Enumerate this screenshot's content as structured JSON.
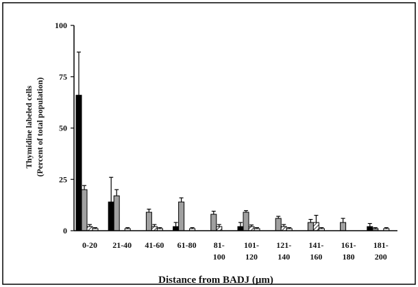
{
  "chart_data": {
    "type": "bar",
    "title": "",
    "xlabel": "Distance from BADJ (μm)",
    "ylabel_lines": [
      "Thymidine labeled cells",
      "(Percent of total population)"
    ],
    "ylim": [
      0,
      100
    ],
    "yticks": [
      0,
      25,
      50,
      75,
      100
    ],
    "grid": false,
    "legend": "none",
    "categories": [
      [
        "0-20"
      ],
      [
        "21-40"
      ],
      [
        "41-60"
      ],
      [
        "61-80"
      ],
      [
        "81-",
        "100"
      ],
      [
        "101-",
        "120"
      ],
      [
        "121-",
        "140"
      ],
      [
        "141-",
        "160"
      ],
      [
        "161-",
        "180"
      ],
      [
        "181-",
        "200"
      ]
    ],
    "series": [
      {
        "fill": "solid-black",
        "color": "#000000",
        "values": [
          66,
          14,
          0,
          2,
          0,
          2,
          0,
          0,
          0,
          2
        ],
        "errors": [
          21,
          12,
          0,
          2,
          0,
          2,
          0,
          0,
          0,
          1.5
        ]
      },
      {
        "fill": "gray",
        "color": "#a0a0a0",
        "values": [
          20,
          17,
          9,
          14,
          8,
          9,
          6,
          4,
          4,
          1
        ],
        "errors": [
          2,
          3,
          1.5,
          2,
          1.5,
          0.8,
          1,
          1.5,
          2,
          0.5
        ]
      },
      {
        "fill": "diagonal-hatch",
        "color": "#000000",
        "values": [
          2,
          0,
          2,
          0,
          2,
          2,
          2,
          4,
          0,
          0
        ],
        "errors": [
          1,
          0,
          1,
          0,
          1,
          0.8,
          1,
          3.5,
          0,
          0
        ]
      },
      {
        "fill": "white",
        "color": "#ffffff",
        "values": [
          1,
          1,
          1,
          1,
          0,
          1,
          1,
          1,
          0,
          1
        ],
        "errors": [
          0.5,
          0.5,
          0.5,
          0.5,
          0,
          0.5,
          0.5,
          0.5,
          0,
          0.5
        ]
      }
    ]
  }
}
